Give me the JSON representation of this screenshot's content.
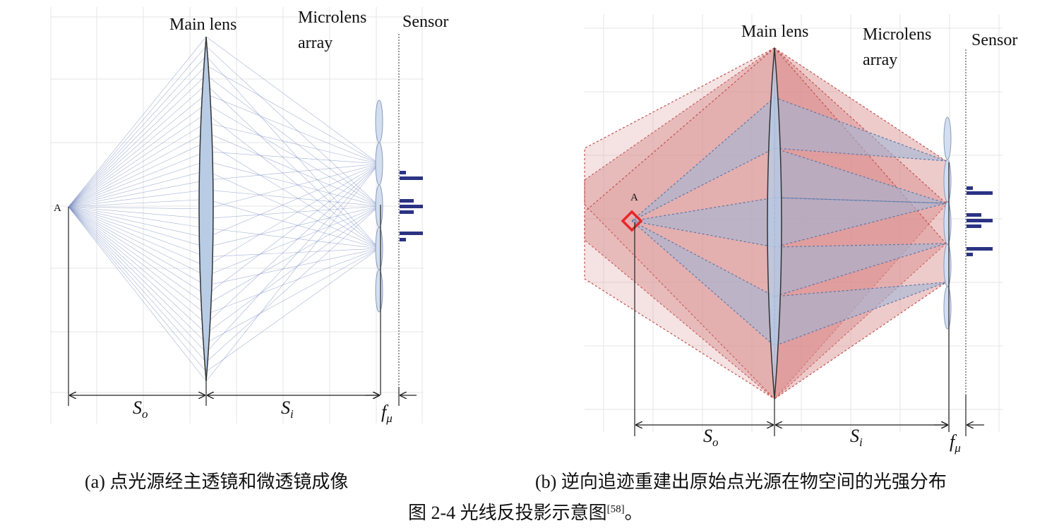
{
  "panel_a": {
    "label_main_lens": "Main lens",
    "label_microlens_1": "Microlens",
    "label_microlens_2": "array",
    "label_sensor": "Sensor",
    "label_point": "A",
    "dim_so": "S",
    "dim_so_sub": "o",
    "dim_si": "S",
    "dim_si_sub": "i",
    "dim_fmu": "f",
    "dim_fmu_sub": "μ"
  },
  "panel_b": {
    "label_main_lens": "Main lens",
    "label_microlens_1": "Microlens",
    "label_microlens_2": "array",
    "label_sensor": "Sensor",
    "label_point": "A",
    "dim_so": "S",
    "dim_so_sub": "o",
    "dim_si": "S",
    "dim_si_sub": "i",
    "dim_fmu": "f",
    "dim_fmu_sub": "μ"
  },
  "captions": {
    "a": "(a)  点光源经主透镜和微透镜成像",
    "b": "(b)  逆向追迹重建出原始点光源在物空间的光强分布",
    "figure": "图 2-4  光线反投影示意图",
    "figure_ref": "[58]",
    "figure_end": "。"
  },
  "colors": {
    "ray_blue": "#7f93c4",
    "lens_fill": "#b9cce6",
    "red_fill": "#d98b8b",
    "blue_fill": "#9db7d8",
    "bar": "#2b3384",
    "marker": "#e8262a"
  }
}
